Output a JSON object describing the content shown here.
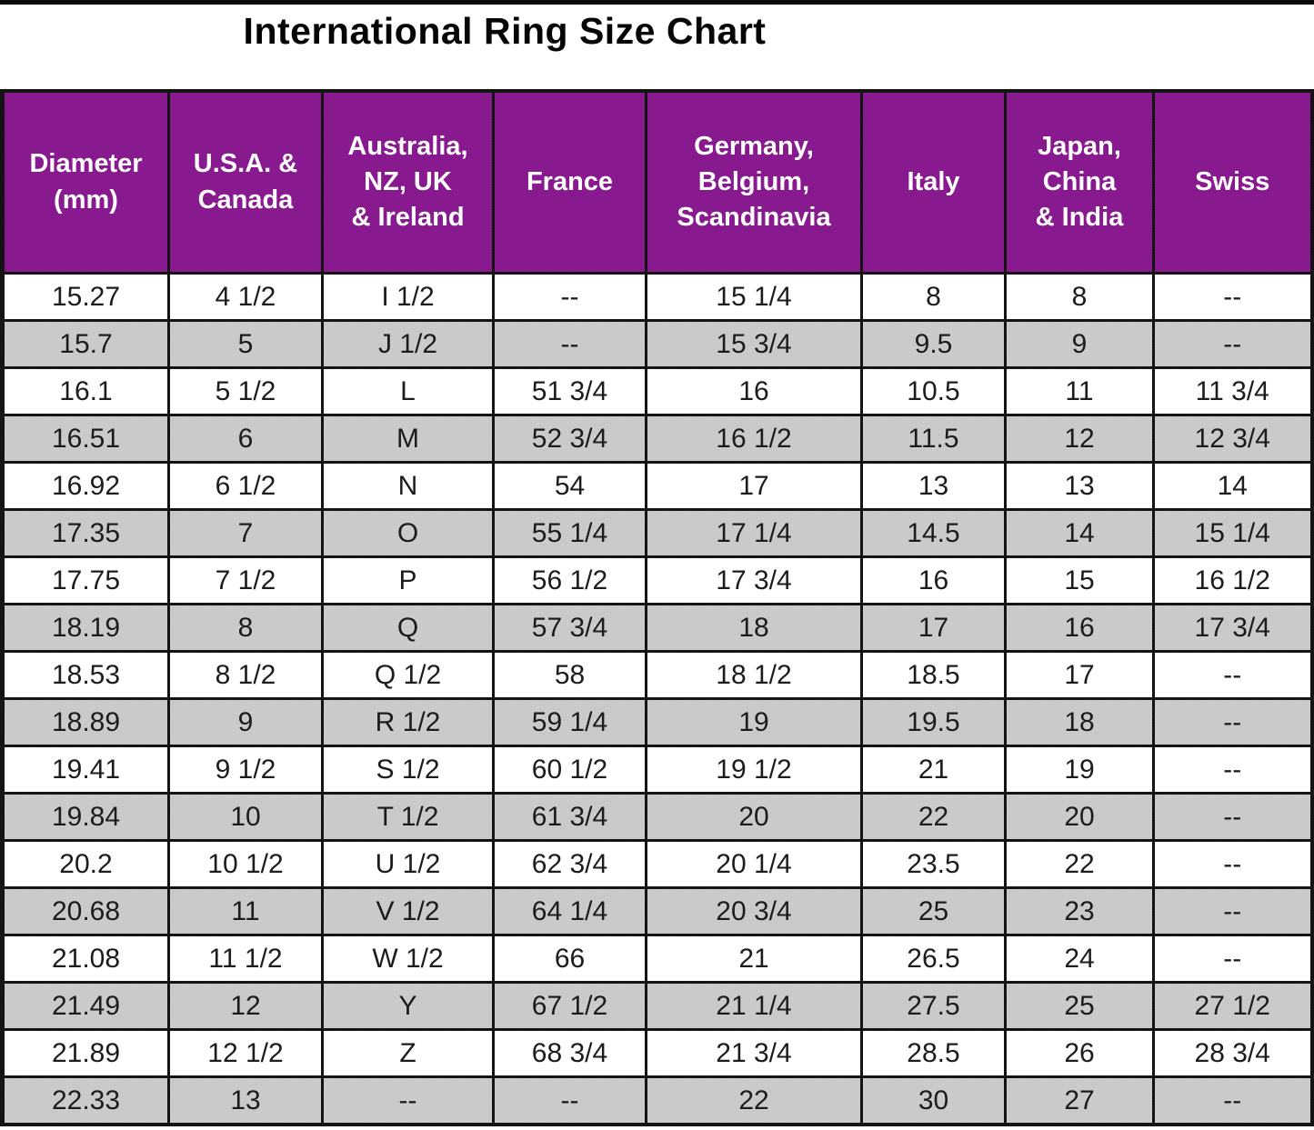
{
  "title": "International Ring Size Chart",
  "colors": {
    "header_bg": "#8C1693",
    "header_text": "#FFFFFF",
    "row_bg": "#FFFFFF",
    "row_alt_bg": "#C9C9C9",
    "border": "#141414",
    "title_text": "#050505"
  },
  "chart_data": {
    "type": "table",
    "title": "International Ring Size Chart",
    "columns": [
      {
        "id": "diameter-mm",
        "label": "Diameter\n(mm)"
      },
      {
        "id": "usa-canada",
        "label": "U.S.A. &\nCanada"
      },
      {
        "id": "australia-nz-uk-ireland",
        "label": "Australia,\nNZ, UK\n& Ireland"
      },
      {
        "id": "france",
        "label": "France"
      },
      {
        "id": "germany-belgium-scandinavia",
        "label": "Germany,\nBelgium,\nScandinavia"
      },
      {
        "id": "italy",
        "label": "Italy"
      },
      {
        "id": "japan-china-india",
        "label": "Japan,\nChina\n& India"
      },
      {
        "id": "swiss",
        "label": "Swiss"
      }
    ],
    "rows": [
      [
        "15.27",
        "4 1/2",
        "I 1/2",
        "--",
        "15 1/4",
        "8",
        "8",
        "--"
      ],
      [
        "15.7",
        "5",
        "J 1/2",
        "--",
        "15 3/4",
        "9.5",
        "9",
        "--"
      ],
      [
        "16.1",
        "5 1/2",
        "L",
        "51 3/4",
        "16",
        "10.5",
        "11",
        "11 3/4"
      ],
      [
        "16.51",
        "6",
        "M",
        "52 3/4",
        "16 1/2",
        "11.5",
        "12",
        "12 3/4"
      ],
      [
        "16.92",
        "6 1/2",
        "N",
        "54",
        "17",
        "13",
        "13",
        "14"
      ],
      [
        "17.35",
        "7",
        "O",
        "55 1/4",
        "17 1/4",
        "14.5",
        "14",
        "15 1/4"
      ],
      [
        "17.75",
        "7 1/2",
        "P",
        "56 1/2",
        "17 3/4",
        "16",
        "15",
        "16 1/2"
      ],
      [
        "18.19",
        "8",
        "Q",
        "57 3/4",
        "18",
        "17",
        "16",
        "17 3/4"
      ],
      [
        "18.53",
        "8 1/2",
        "Q 1/2",
        "58",
        "18 1/2",
        "18.5",
        "17",
        "--"
      ],
      [
        "18.89",
        "9",
        "R 1/2",
        "59 1/4",
        "19",
        "19.5",
        "18",
        "--"
      ],
      [
        "19.41",
        "9 1/2",
        "S 1/2",
        "60 1/2",
        "19 1/2",
        "21",
        "19",
        "--"
      ],
      [
        "19.84",
        "10",
        "T 1/2",
        "61 3/4",
        "20",
        "22",
        "20",
        "--"
      ],
      [
        "20.2",
        "10 1/2",
        "U 1/2",
        "62 3/4",
        "20 1/4",
        "23.5",
        "22",
        "--"
      ],
      [
        "20.68",
        "11",
        "V 1/2",
        "64 1/4",
        "20 3/4",
        "25",
        "23",
        "--"
      ],
      [
        "21.08",
        "11 1/2",
        "W 1/2",
        "66",
        "21",
        "26.5",
        "24",
        "--"
      ],
      [
        "21.49",
        "12",
        "Y",
        "67 1/2",
        "21 1/4",
        "27.5",
        "25",
        "27 1/2"
      ],
      [
        "21.89",
        "12 1/2",
        "Z",
        "68 3/4",
        "21 3/4",
        "28.5",
        "26",
        "28 3/4"
      ],
      [
        "22.33",
        "13",
        "--",
        "--",
        "22",
        "30",
        "27",
        "--"
      ]
    ]
  }
}
